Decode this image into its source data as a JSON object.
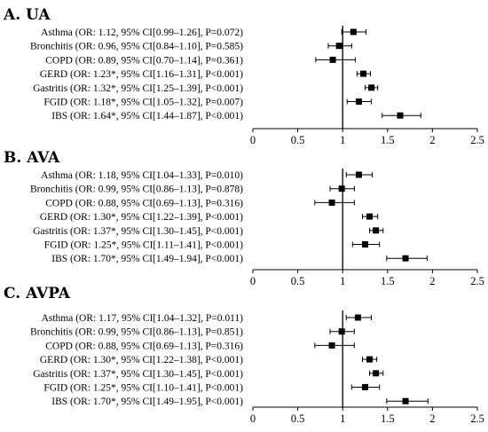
{
  "chart_data": [
    {
      "type": "forest",
      "title": "A. UA",
      "xlim": [
        0,
        2.5
      ],
      "xticks": [
        "0",
        "0.5",
        "1",
        "1.5",
        "2",
        "2.5"
      ],
      "reference_line": 1,
      "rows": [
        {
          "label": "Asthma (OR: 1.12, 95% CI[0.99–1.26], P=0.072)",
          "or": 1.12,
          "lo": 0.99,
          "hi": 1.26
        },
        {
          "label": "Bronchitis (OR: 0.96, 95% CI[0.84–1.10], P=0.585)",
          "or": 0.96,
          "lo": 0.84,
          "hi": 1.1
        },
        {
          "label": "COPD (OR: 0.89, 95% CI[0.70–1.14], P=0.361)",
          "or": 0.89,
          "lo": 0.7,
          "hi": 1.14
        },
        {
          "label": "GERD (OR: 1.23*, 95% CI[1.16–1.31], P<0.001)",
          "or": 1.23,
          "lo": 1.16,
          "hi": 1.31
        },
        {
          "label": "Gastritis (OR: 1.32*, 95% CI[1.25–1.39], P<0.001)",
          "or": 1.32,
          "lo": 1.25,
          "hi": 1.39
        },
        {
          "label": "FGID (OR: 1.18*, 95% CI[1.05–1.32], P=0.007)",
          "or": 1.18,
          "lo": 1.05,
          "hi": 1.32
        },
        {
          "label": "IBS (OR: 1.64*, 95% CI[1.44–1.87], P<0.001)",
          "or": 1.64,
          "lo": 1.44,
          "hi": 1.87
        }
      ]
    },
    {
      "type": "forest",
      "title": "B. AVA",
      "xlim": [
        0,
        2.5
      ],
      "xticks": [
        "0",
        "0.5",
        "1",
        "1.5",
        "2",
        "2.5"
      ],
      "reference_line": 1,
      "rows": [
        {
          "label": "Asthma (OR: 1.18, 95% CI[1.04–1.33], P=0.010)",
          "or": 1.18,
          "lo": 1.04,
          "hi": 1.33
        },
        {
          "label": "Bronchitis (OR: 0.99, 95% CI[0.86–1.13], P=0.878)",
          "or": 0.99,
          "lo": 0.86,
          "hi": 1.13
        },
        {
          "label": "COPD (OR: 0.88, 95% CI[0.69–1.13], P=0.316)",
          "or": 0.88,
          "lo": 0.69,
          "hi": 1.13
        },
        {
          "label": "GERD (OR: 1.30*, 95% CI[1.22–1.39], P<0.001)",
          "or": 1.3,
          "lo": 1.22,
          "hi": 1.39
        },
        {
          "label": "Gastritis (OR: 1.37*, 95% CI[1.30–1.45], P<0.001)",
          "or": 1.37,
          "lo": 1.3,
          "hi": 1.45
        },
        {
          "label": "FGID (OR: 1.25*, 95% CI[1.11–1.41], P<0.001)",
          "or": 1.25,
          "lo": 1.11,
          "hi": 1.41
        },
        {
          "label": "IBS (OR: 1.70*, 95% CI[1.49–1.94], P<0.001)",
          "or": 1.7,
          "lo": 1.49,
          "hi": 1.94
        }
      ]
    },
    {
      "type": "forest",
      "title": "C. AVPA",
      "xlim": [
        0,
        2.5
      ],
      "xticks": [
        "0",
        "0.5",
        "1",
        "1.5",
        "2",
        "2.5"
      ],
      "reference_line": 1,
      "rows": [
        {
          "label": "Asthma (OR: 1.17, 95% CI[1.04–1.32], P=0.011)",
          "or": 1.17,
          "lo": 1.04,
          "hi": 1.32
        },
        {
          "label": "Bronchitis (OR: 0.99, 95% CI[0.86–1.13], P=0.851)",
          "or": 0.99,
          "lo": 0.86,
          "hi": 1.13
        },
        {
          "label": "COPD (OR: 0.88, 95% CI[0.69–1.13], P=0.316)",
          "or": 0.88,
          "lo": 0.69,
          "hi": 1.13
        },
        {
          "label": "GERD (OR: 1.30*, 95% CI[1.22–1.38], P<0.001)",
          "or": 1.3,
          "lo": 1.22,
          "hi": 1.38
        },
        {
          "label": "Gastritis (OR: 1.37*, 95% CI[1.30–1.45], P<0.001)",
          "or": 1.37,
          "lo": 1.3,
          "hi": 1.45
        },
        {
          "label": "FGID (OR: 1.25*, 95% CI[1.10–1.41], P<0.001)",
          "or": 1.25,
          "lo": 1.1,
          "hi": 1.41
        },
        {
          "label": "IBS (OR: 1.70*, 95% CI[1.49–1.95], P<0.001)",
          "or": 1.7,
          "lo": 1.49,
          "hi": 1.95
        }
      ]
    }
  ]
}
